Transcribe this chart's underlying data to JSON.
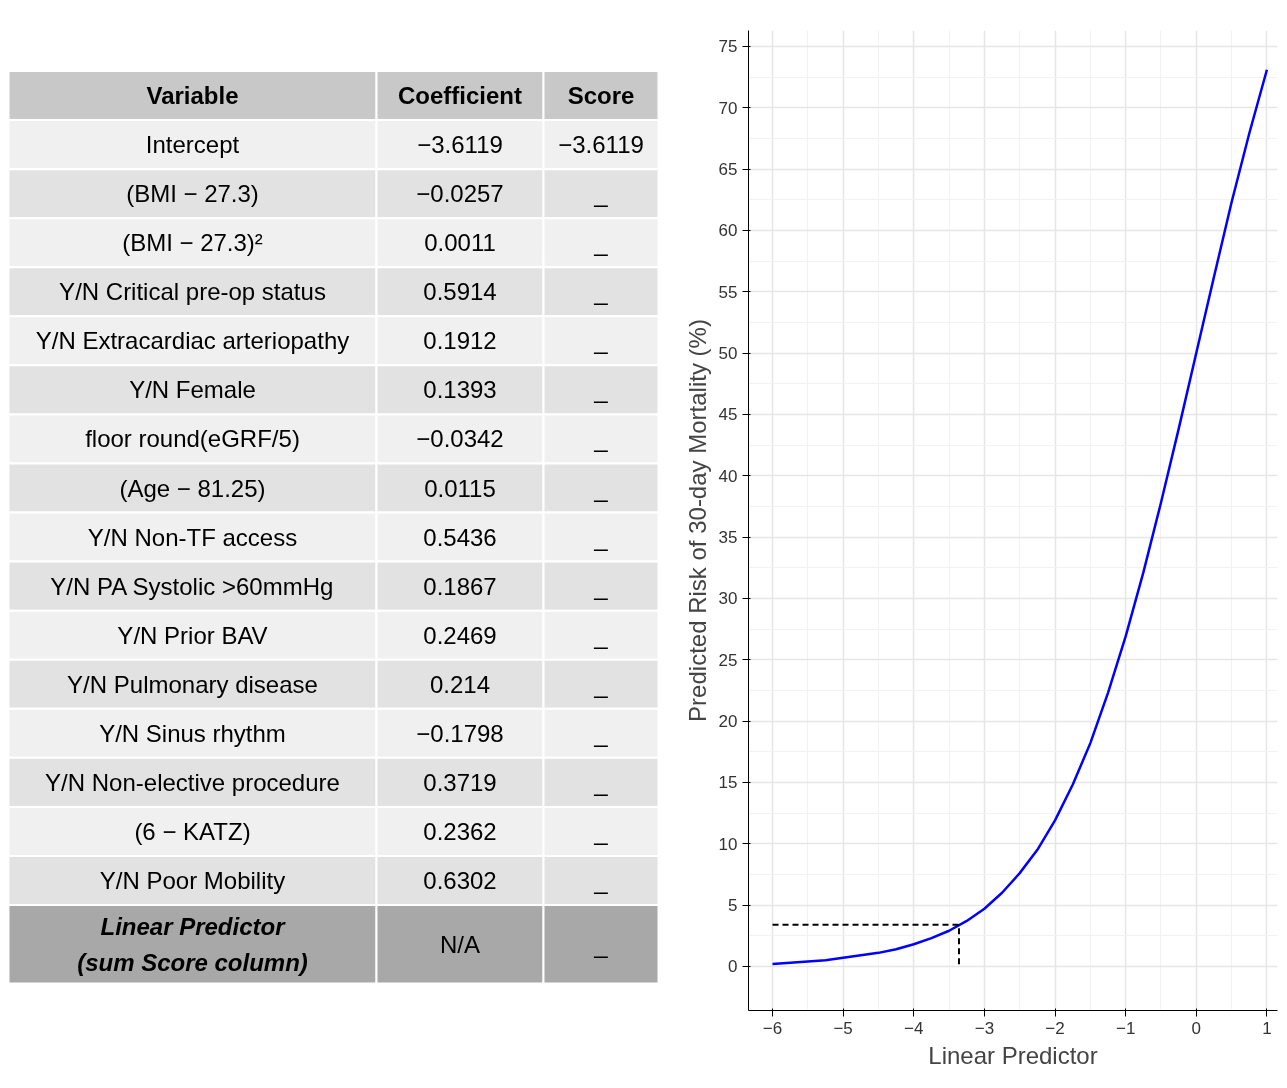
{
  "chart_data": [
    {
      "type": "other",
      "annotations": [
        "Variable",
        "Coefficient",
        "Score",
        "Intercept",
        "−3.6119",
        "−3.6119",
        "(BMI − 27.3)",
        "−0.0257",
        "_",
        "(BMI − 27.3)²",
        "0.0011",
        "_",
        "Y/N Critical pre-op status",
        "0.5914",
        "_",
        "Y/N Extracardiac arteriopathy",
        "0.1912",
        "_",
        "Y/N Female",
        "0.1393",
        "_",
        "floor round(eGRF/5)",
        "−0.0342",
        "_",
        "(Age − 81.25)",
        "0.0115",
        "_",
        "Y/N Non-TF access",
        "0.5436",
        "_",
        "Y/N PA Systolic >60mmHg",
        "0.1867",
        "_",
        "Y/N Prior BAV",
        "0.2469",
        "_",
        "Y/N Pulmonary disease",
        "0.214",
        "_",
        "Y/N Sinus rhythm",
        "−0.1798",
        "_",
        "Y/N Non-elective procedure",
        "0.3719",
        "_",
        "(6 − KATZ)",
        "0.2362",
        "_",
        "Y/N Poor Mobility",
        "0.6302",
        "_",
        "Linear Predictor\n(sum Score column)",
        "N/A",
        "_"
      ]
    },
    {
      "type": "line",
      "xlabel": "Linear Predictor",
      "ylabel": "Predicted Risk of 30-day Mortality (%)",
      "xlim": [
        -6.34,
        1.15
      ],
      "ylim": [
        -3.6,
        76.3
      ],
      "xticks": [
        -6,
        -5,
        -4,
        -3,
        -2,
        -1,
        0,
        1
      ],
      "yticks": [
        0,
        5,
        10,
        15,
        20,
        25,
        30,
        35,
        40,
        45,
        50,
        55,
        60,
        65,
        70,
        75
      ],
      "grid": true,
      "series": [
        {
          "color": "#0000ff",
          "line_style": "solid",
          "x": [
            -6,
            -5.75,
            -5.5,
            -5.25,
            -5,
            -4.75,
            -4.5,
            -4.25,
            -4,
            -3.75,
            -3.5,
            -3.25,
            -3,
            -2.75,
            -2.5,
            -2.25,
            -2,
            -1.75,
            -1.5,
            -1.25,
            -1,
            -0.75,
            -0.5,
            -0.25,
            0,
            0.25,
            0.5,
            0.75,
            1
          ],
          "values": [
            0.2,
            0.3,
            0.4,
            0.5,
            0.7,
            0.9,
            1.1,
            1.4,
            1.8,
            2.3,
            2.9,
            3.7,
            4.7,
            6.0,
            7.6,
            9.5,
            11.9,
            14.8,
            18.2,
            22.3,
            26.9,
            32.1,
            37.8,
            43.8,
            50.0,
            56.2,
            62.3,
            67.9,
            73.1
          ]
        },
        {
          "color": "#000000",
          "line_style": "dashed",
          "x": [
            -6,
            -3.36,
            -3.36
          ],
          "values": [
            3.4,
            3.4,
            0
          ]
        }
      ]
    }
  ]
}
